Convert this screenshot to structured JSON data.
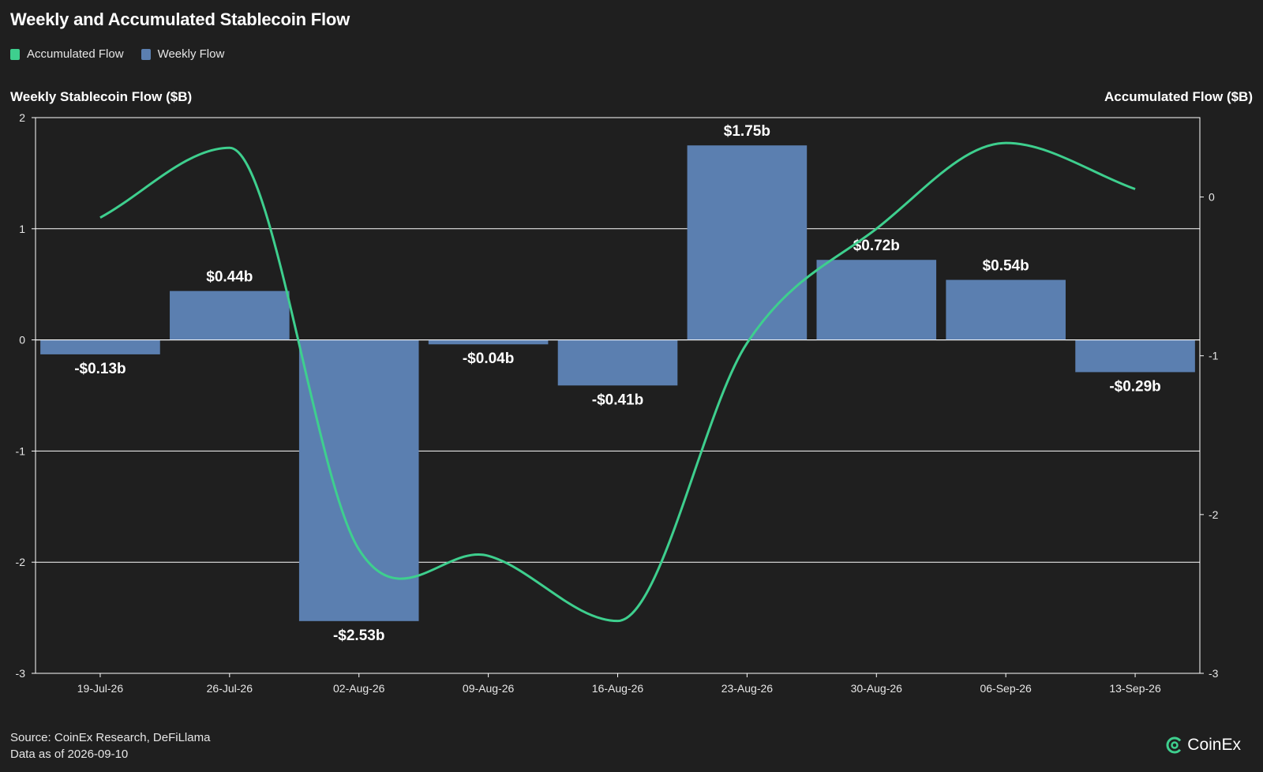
{
  "title": "Weekly and Accumulated Stablecoin Flow",
  "legend": [
    {
      "label": "Accumulated Flow",
      "color": "#3ecf8e"
    },
    {
      "label": "Weekly Flow",
      "color": "#5b7fb0"
    }
  ],
  "axis_titles": {
    "left": "Weekly Stablecoin Flow ($B)",
    "right": "Accumulated Flow ($B)"
  },
  "footer": {
    "source": "Source: CoinEx Research, DeFiLlama",
    "date": "Data as of 2026-09-10"
  },
  "brand": {
    "name": "CoinEx",
    "icon": "coinex-logo-icon"
  },
  "chart_data": {
    "type": "bar",
    "categories": [
      "19-Jul-26",
      "26-Jul-26",
      "02-Aug-26",
      "09-Aug-26",
      "16-Aug-26",
      "23-Aug-26",
      "30-Aug-26",
      "06-Sep-26",
      "13-Sep-26"
    ],
    "series": [
      {
        "name": "Weekly Flow",
        "type": "bar",
        "axis": "left",
        "color": "#5b7fb0",
        "values": [
          -0.13,
          0.44,
          -2.53,
          -0.04,
          -0.41,
          1.75,
          0.72,
          0.54,
          -0.29
        ],
        "labels": [
          "-$0.13b",
          "$0.44b",
          "-$2.53b",
          "-$0.04b",
          "-$0.41b",
          "$1.75b",
          "$0.72b",
          "$0.54b",
          "-$0.29b"
        ]
      },
      {
        "name": "Accumulated Flow",
        "type": "line",
        "axis": "right",
        "color": "#3ecf8e",
        "values": [
          -0.13,
          0.31,
          -2.22,
          -2.26,
          -2.67,
          -0.92,
          -0.2,
          0.34,
          0.05
        ]
      }
    ],
    "ylim_left": [
      -3,
      2
    ],
    "yticks_left": [
      2,
      1,
      0,
      -1,
      -2,
      -3
    ],
    "ylim_right": [
      -3,
      0.5
    ],
    "yticks_right": [
      0,
      -1,
      -2,
      -3
    ],
    "grid": true,
    "legend_position": "top-left"
  }
}
